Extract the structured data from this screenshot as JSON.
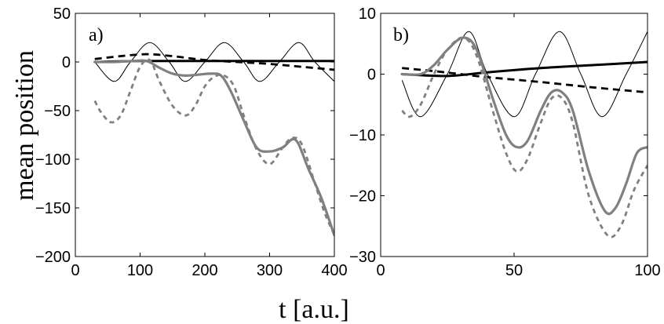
{
  "figure": {
    "ylabel": "mean position",
    "xlabel": "t [a.u.]"
  },
  "chart_data": [
    {
      "type": "line",
      "panel_label": "a)",
      "xlim": [
        0,
        400
      ],
      "ylim": [
        -200,
        50
      ],
      "xticks": [
        0,
        100,
        200,
        300,
        400
      ],
      "yticks": [
        50,
        0,
        -50,
        -100,
        -150,
        -200
      ],
      "grid": false,
      "series": [
        {
          "style": "thin-solid-black",
          "color": "#000000",
          "x": [
            30,
            60,
            85,
            115,
            145,
            170,
            200,
            230,
            260,
            285,
            315,
            345,
            370,
            400
          ],
          "y": [
            0,
            -20,
            0,
            20,
            0,
            -20,
            0,
            20,
            0,
            -20,
            0,
            20,
            0,
            -20
          ]
        },
        {
          "style": "thick-solid-black",
          "color": "#000000",
          "x": [
            30,
            100,
            200,
            300,
            400
          ],
          "y": [
            0,
            1,
            1,
            1,
            1
          ]
        },
        {
          "style": "thick-dashed-black",
          "color": "#000000",
          "x": [
            30,
            70,
            110,
            150,
            200,
            250,
            300,
            350,
            400
          ],
          "y": [
            3,
            6,
            8,
            6,
            2,
            0,
            -2,
            -5,
            -8
          ]
        },
        {
          "style": "thick-solid-gray",
          "color": "#808080",
          "x": [
            30,
            60,
            90,
            110,
            130,
            150,
            170,
            190,
            210,
            225,
            240,
            260,
            280,
            300,
            320,
            340,
            360,
            380,
            400
          ],
          "y": [
            0,
            0,
            1,
            1,
            -6,
            -12,
            -14,
            -13,
            -12,
            -14,
            -30,
            -60,
            -88,
            -92,
            -88,
            -80,
            -110,
            -140,
            -178
          ]
        },
        {
          "style": "thick-dashed-gray",
          "color": "#808080",
          "x": [
            30,
            40,
            55,
            70,
            85,
            100,
            115,
            130,
            150,
            170,
            185,
            200,
            215,
            230,
            245,
            260,
            280,
            300,
            320,
            335,
            350,
            370,
            385,
            400
          ],
          "y": [
            -40,
            -52,
            -62,
            -55,
            -30,
            -5,
            2,
            -20,
            -45,
            -55,
            -45,
            -25,
            -15,
            -14,
            -25,
            -55,
            -90,
            -105,
            -88,
            -78,
            -85,
            -125,
            -155,
            -178
          ]
        }
      ]
    },
    {
      "type": "line",
      "panel_label": "b)",
      "xlim": [
        0,
        100
      ],
      "ylim": [
        -30,
        10
      ],
      "xticks": [
        0,
        50,
        100
      ],
      "yticks": [
        10,
        0,
        -10,
        -20,
        -30
      ],
      "grid": false,
      "series": [
        {
          "style": "thin-solid-black",
          "color": "#000000",
          "x": [
            8,
            15,
            25,
            33,
            40,
            50,
            58,
            67,
            75,
            83,
            92,
            100
          ],
          "y": [
            -1,
            -7,
            0,
            7,
            0,
            -7,
            0,
            7,
            0,
            -7,
            0,
            7
          ]
        },
        {
          "style": "thick-solid-black",
          "color": "#000000",
          "x": [
            8,
            25,
            40,
            60,
            80,
            100
          ],
          "y": [
            0,
            -0.3,
            0.3,
            1,
            1.5,
            2
          ]
        },
        {
          "style": "thick-dashed-black",
          "color": "#000000",
          "x": [
            8,
            20,
            30,
            40,
            60,
            80,
            100
          ],
          "y": [
            1,
            0.5,
            0,
            -0.5,
            -1.3,
            -2.2,
            -3
          ]
        },
        {
          "style": "thick-solid-gray",
          "color": "#808080",
          "x": [
            8,
            15,
            20,
            25,
            31,
            36,
            42,
            47,
            51,
            55,
            60,
            64,
            68,
            72,
            78,
            84,
            88,
            92,
            96,
            100
          ],
          "y": [
            0,
            0,
            1.5,
            4,
            6,
            4,
            -4,
            -10,
            -12,
            -11,
            -6,
            -3,
            -3,
            -6,
            -16,
            -22.5,
            -22,
            -18,
            -13,
            -12
          ]
        },
        {
          "style": "thick-dashed-gray",
          "color": "#808080",
          "x": [
            8,
            11,
            15,
            20,
            25,
            31,
            36,
            42,
            47,
            51,
            55,
            60,
            64,
            68,
            72,
            78,
            85,
            90,
            95,
            100
          ],
          "y": [
            -6,
            -7,
            -5,
            0,
            4,
            6,
            3,
            -6,
            -13,
            -16,
            -14,
            -8,
            -4,
            -4,
            -8,
            -20,
            -26.5,
            -25,
            -19,
            -15
          ]
        }
      ]
    }
  ]
}
